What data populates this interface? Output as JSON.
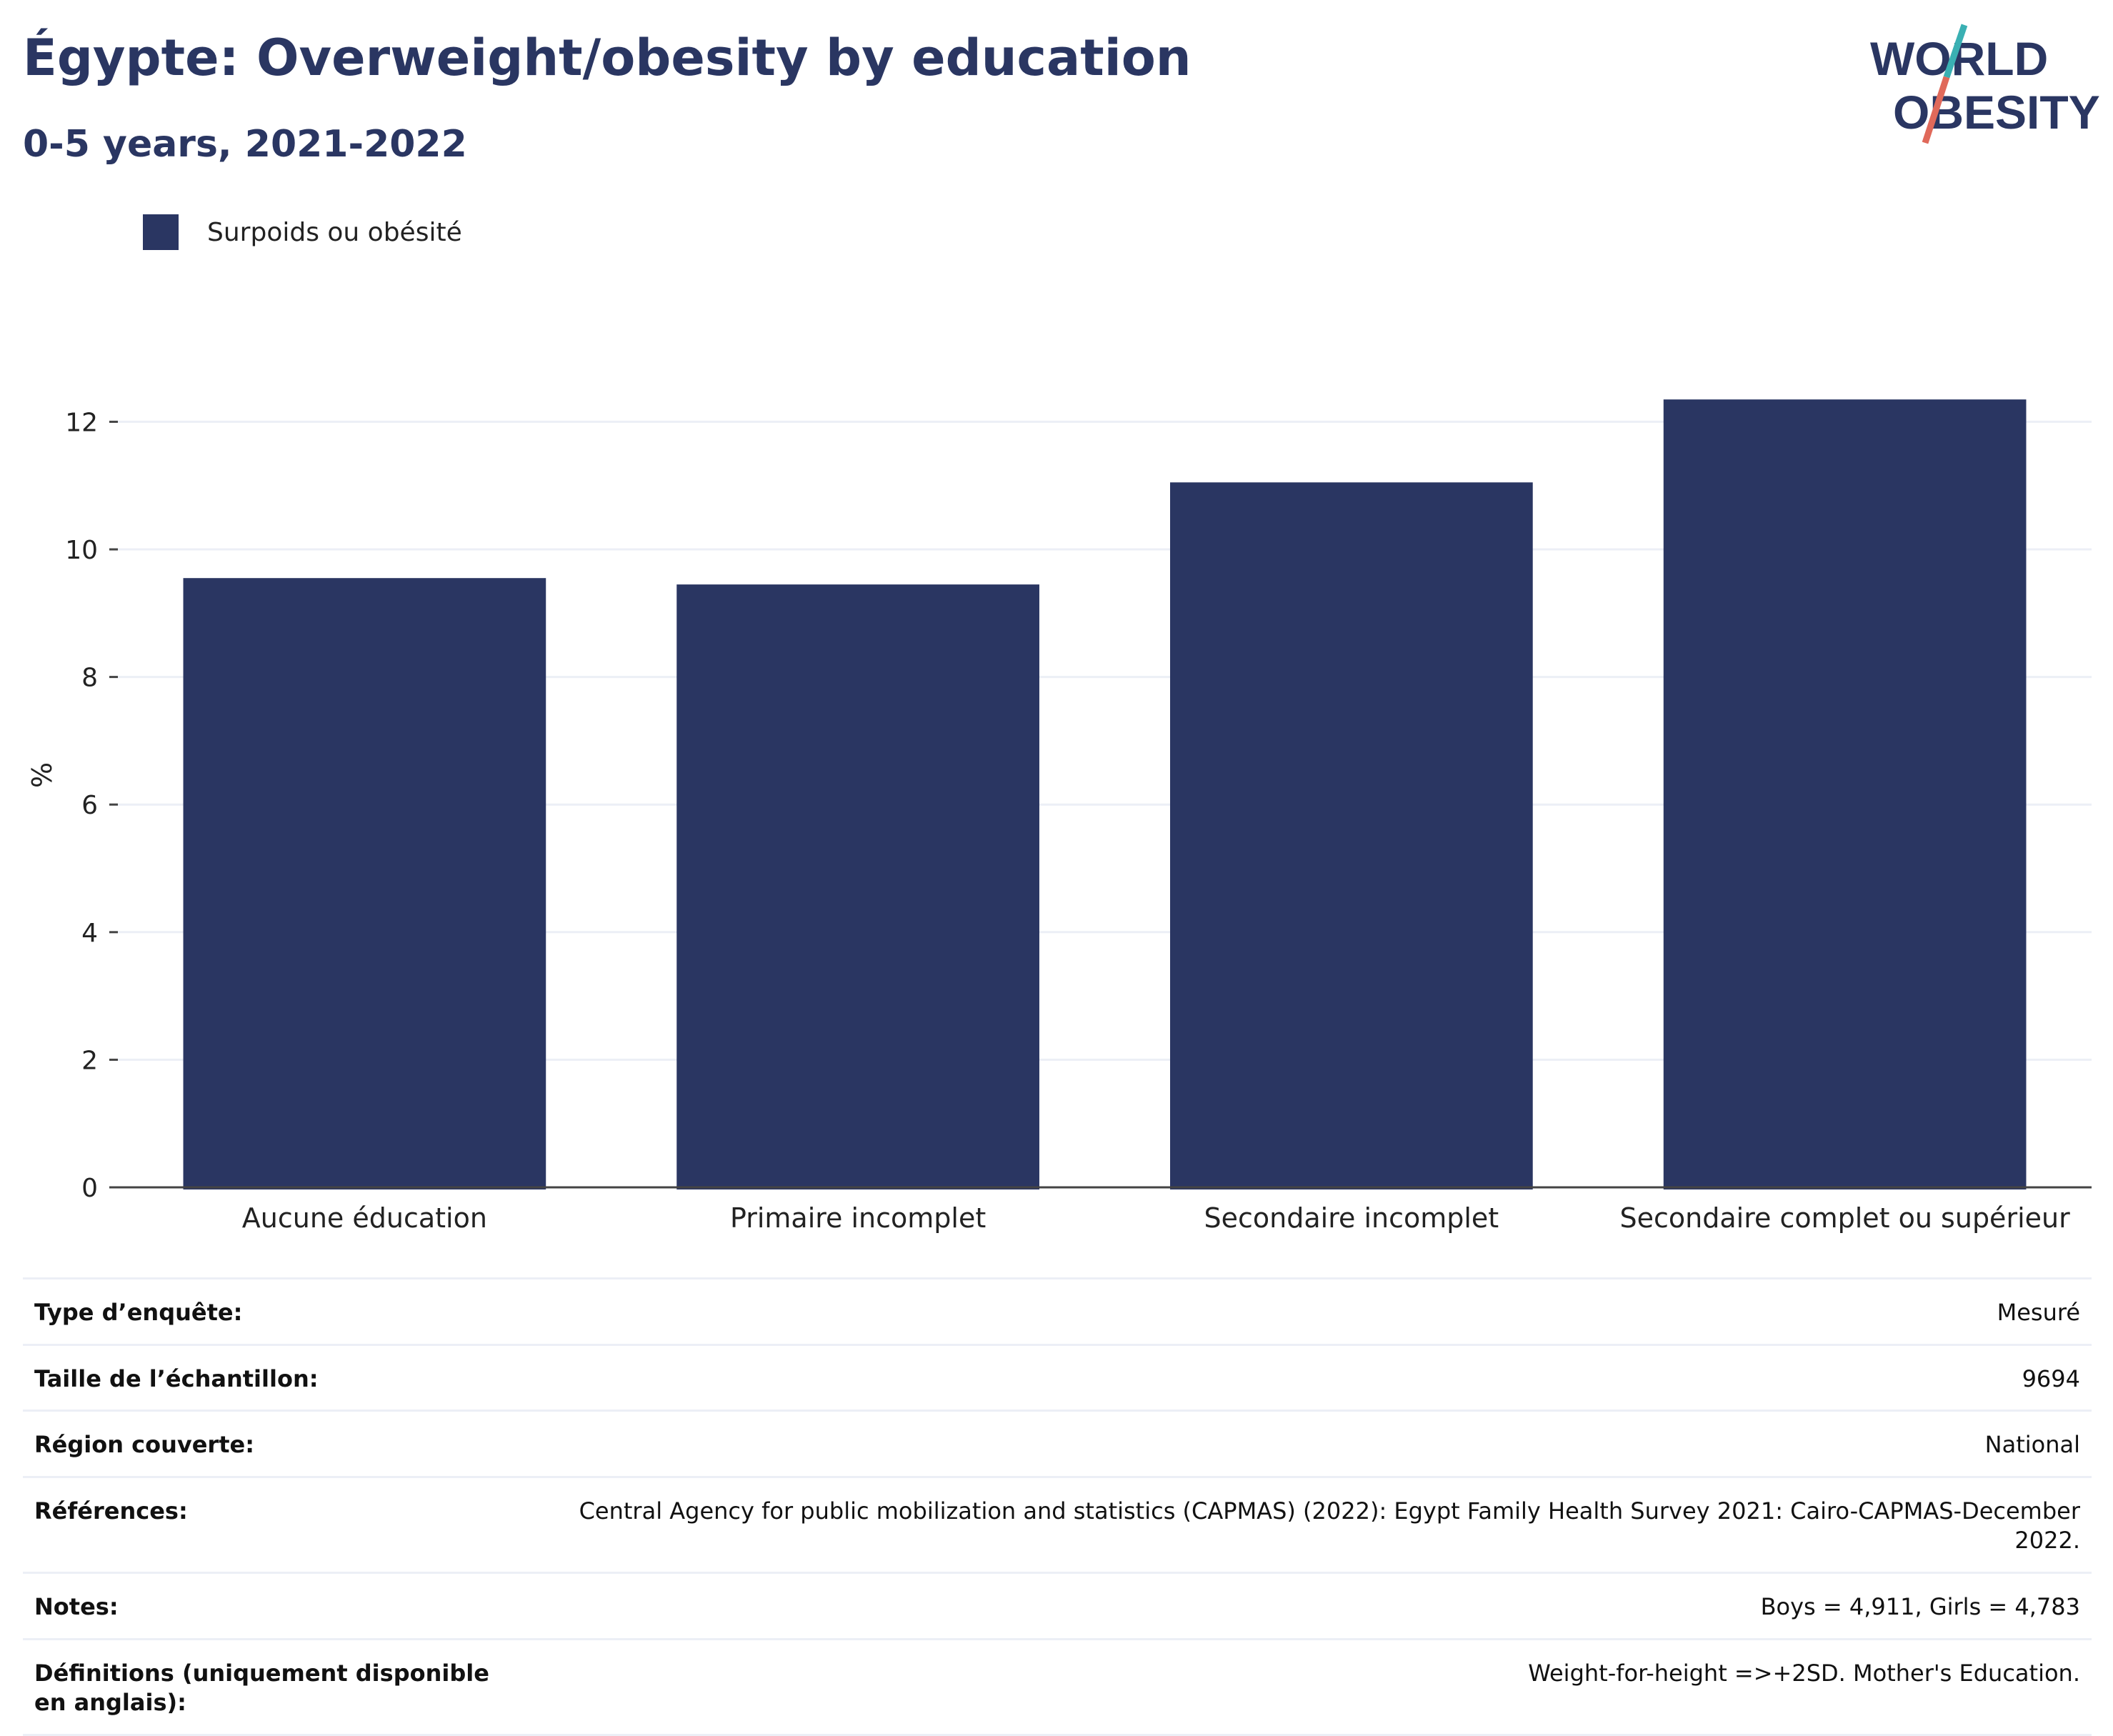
{
  "header": {
    "title": "Égypte: Overweight/obesity by education",
    "subtitle": "0-5 years, 2021-2022"
  },
  "logo": {
    "line1": "WORLD",
    "line2": "OBESITY",
    "colors": {
      "text": "#2a3662",
      "slash_top": "#3ab0b3",
      "slash_bottom": "#e0695a"
    }
  },
  "chart_data": {
    "type": "bar",
    "categories": [
      "Aucune éducation",
      "Primaire incomplet",
      "Secondaire incomplet",
      "Secondaire complet ou supérieur"
    ],
    "series": [
      {
        "name": "Surpoids ou obésité",
        "values": [
          9.55,
          9.45,
          11.05,
          12.35
        ],
        "color": "#2a3662"
      }
    ],
    "title": "Égypte: Overweight/obesity by education",
    "subtitle": "0-5 years, 2021-2022",
    "xlabel": "",
    "ylabel": "%",
    "ylim": [
      0,
      13
    ],
    "yticks": [
      0,
      2,
      4,
      6,
      8,
      10,
      12
    ],
    "grid": true,
    "legend_position": "top-left"
  },
  "info": [
    {
      "key": "Type d’enquête:",
      "value": "Mesuré"
    },
    {
      "key": "Taille de l’échantillon:",
      "value": "9694"
    },
    {
      "key": "Région couverte:",
      "value": "National"
    },
    {
      "key": "Références:",
      "value": "Central Agency for public mobilization and statistics (CAPMAS) (2022): Egypt Family Health Survey 2021: Cairo-CAPMAS-December 2022."
    },
    {
      "key": "Notes:",
      "value": "Boys = 4,911, Girls = 4,783"
    },
    {
      "key": "Définitions (uniquement disponible en anglais):",
      "value": "Weight-for-height =>+2SD. Mother's Education."
    }
  ]
}
